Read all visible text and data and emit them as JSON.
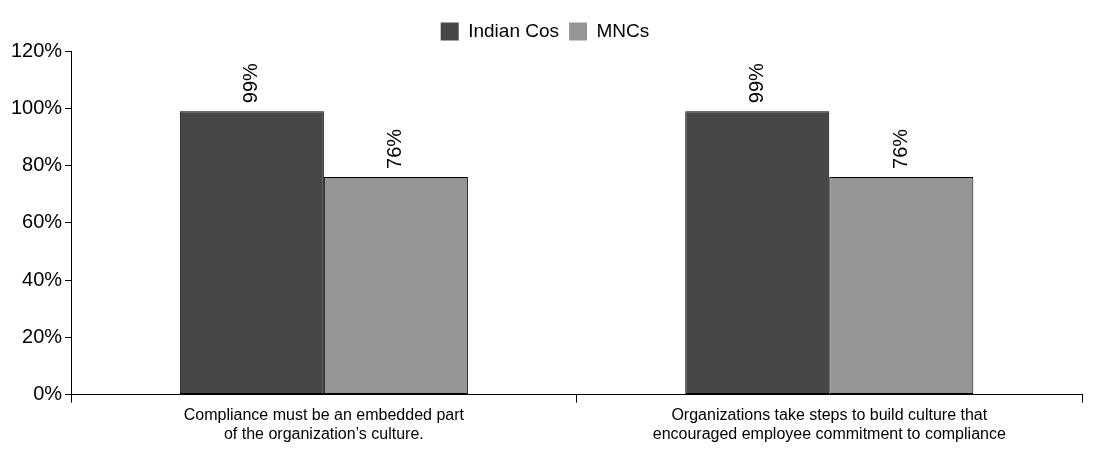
{
  "chart_data": {
    "type": "bar",
    "categories": [
      "Compliance must be an embedded part of the organization’s culture.",
      "Organizations take steps to build culture that encouraged employee commitment to compliance"
    ],
    "series": [
      {
        "name": "Indian Cos",
        "color": "#474747",
        "values": [
          99,
          99
        ],
        "value_labels": [
          "99%",
          "99%"
        ]
      },
      {
        "name": "MNCs",
        "color": "#969696",
        "values": [
          76,
          76
        ],
        "value_labels": [
          "76%",
          "76%"
        ]
      }
    ],
    "ylim": [
      0,
      120
    ],
    "yticks": [
      {
        "value": 0,
        "label": "0%"
      },
      {
        "value": 20,
        "label": "20%"
      },
      {
        "value": 40,
        "label": "40%"
      },
      {
        "value": 60,
        "label": "60%"
      },
      {
        "value": 80,
        "label": "80%"
      },
      {
        "value": 100,
        "label": "100%"
      },
      {
        "value": 120,
        "label": "120%"
      }
    ],
    "grid": false,
    "legend": "top"
  }
}
